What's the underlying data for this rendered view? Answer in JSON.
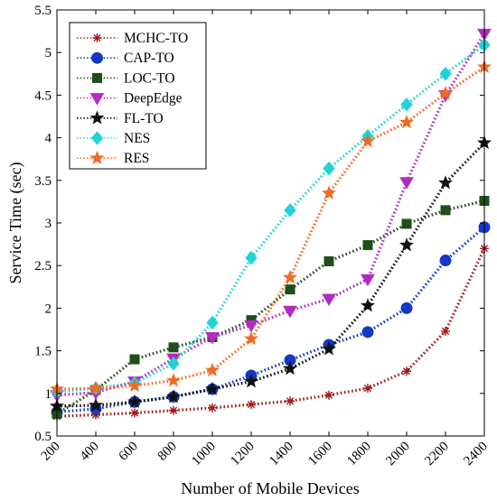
{
  "chart_data": {
    "type": "line",
    "title": "",
    "xlabel": "Number of Mobile Devices",
    "ylabel": "Service Time (sec)",
    "x": [
      200,
      400,
      600,
      800,
      1000,
      1200,
      1400,
      1600,
      1800,
      2000,
      2200,
      2400
    ],
    "xlim": [
      200,
      2400
    ],
    "ylim": [
      0.5,
      5.5
    ],
    "xticks": [
      "200",
      "400",
      "600",
      "800",
      "1000",
      "1200",
      "1400",
      "1600",
      "1800",
      "2000",
      "2200",
      "2400"
    ],
    "yticks": [
      "0.5",
      "1",
      "1.5",
      "2",
      "2.5",
      "3",
      "3.5",
      "4",
      "4.5",
      "5",
      "5.5"
    ],
    "grid": false,
    "legend_position": "top-left",
    "series": [
      {
        "name": "MCHC-TO",
        "color": "#a01818",
        "marker": "asterisk",
        "values": [
          0.73,
          0.75,
          0.77,
          0.8,
          0.83,
          0.87,
          0.91,
          0.98,
          1.06,
          1.26,
          1.73,
          2.7
        ]
      },
      {
        "name": "CAP-TO",
        "color": "#1538c4",
        "marker": "circle",
        "values": [
          0.78,
          0.82,
          0.9,
          0.96,
          1.05,
          1.21,
          1.39,
          1.57,
          1.72,
          2.0,
          2.56,
          2.95
        ]
      },
      {
        "name": "LOC-TO",
        "color": "#1f4e1a",
        "marker": "square",
        "values": [
          0.76,
          1.04,
          1.4,
          1.54,
          1.66,
          1.86,
          2.22,
          2.55,
          2.74,
          2.99,
          3.15,
          3.26
        ]
      },
      {
        "name": "DeepEdge",
        "color": "#b22bc0",
        "marker": "triangle-down",
        "values": [
          0.98,
          1.01,
          1.14,
          1.41,
          1.66,
          1.8,
          1.97,
          2.11,
          2.34,
          3.48,
          4.5,
          5.22
        ]
      },
      {
        "name": "FL-TO",
        "color": "#111111",
        "marker": "star",
        "values": [
          0.85,
          0.86,
          0.9,
          0.96,
          1.05,
          1.14,
          1.29,
          1.52,
          2.03,
          2.74,
          3.47,
          3.94
        ]
      },
      {
        "name": "NES",
        "color": "#22d2d6",
        "marker": "diamond",
        "values": [
          1.02,
          1.06,
          1.12,
          1.35,
          1.83,
          2.59,
          3.15,
          3.64,
          4.02,
          4.39,
          4.75,
          5.09
        ]
      },
      {
        "name": "RES",
        "color": "#f06a22",
        "marker": "star",
        "values": [
          1.05,
          1.06,
          1.09,
          1.15,
          1.27,
          1.64,
          2.36,
          3.35,
          3.96,
          4.18,
          4.52,
          4.83
        ]
      }
    ]
  }
}
